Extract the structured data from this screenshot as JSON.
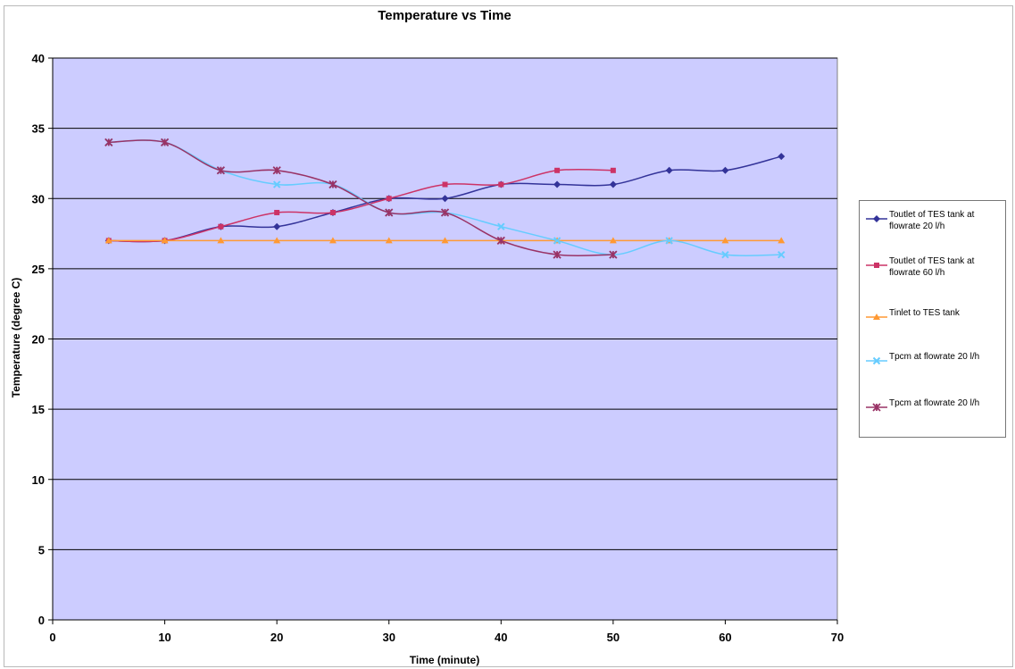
{
  "chart_data": {
    "type": "line",
    "title": "Temperature vs Time",
    "xlabel": "Time (minute)",
    "ylabel": "Temperature (degree C)",
    "xlim": [
      0,
      70
    ],
    "ylim": [
      0,
      40
    ],
    "x_ticks": [
      0,
      10,
      20,
      30,
      40,
      50,
      60,
      70
    ],
    "y_ticks": [
      0,
      5,
      10,
      15,
      20,
      25,
      30,
      35,
      40
    ],
    "grid": true,
    "legend_position": "right",
    "plot_background": "#ccccff",
    "series": [
      {
        "name": "Toutlet of TES tank at flowrate 20 l/h",
        "color": "#333399",
        "marker": "diamond",
        "x": [
          5,
          10,
          15,
          20,
          25,
          30,
          35,
          40,
          45,
          50,
          55,
          60,
          65
        ],
        "values": [
          27,
          27,
          28,
          28,
          29,
          30,
          30,
          31,
          31,
          31,
          32,
          32,
          33
        ]
      },
      {
        "name": "Toutlet of TES tank at flowrate 60 l/h",
        "color": "#cc3366",
        "marker": "square",
        "x": [
          5,
          10,
          15,
          20,
          25,
          30,
          35,
          40,
          45,
          50
        ],
        "values": [
          27,
          27,
          28,
          29,
          29,
          30,
          31,
          31,
          32,
          32
        ]
      },
      {
        "name": "Tinlet to TES tank",
        "color": "#ff9933",
        "marker": "triangle",
        "x": [
          5,
          10,
          15,
          20,
          25,
          30,
          35,
          40,
          45,
          50,
          55,
          60,
          65
        ],
        "values": [
          27,
          27,
          27,
          27,
          27,
          27,
          27,
          27,
          27,
          27,
          27,
          27,
          27
        ]
      },
      {
        "name": "Tpcm at flowrate 20 l/h",
        "color": "#66ccff",
        "marker": "x",
        "x": [
          5,
          10,
          15,
          20,
          25,
          30,
          35,
          40,
          45,
          50,
          55,
          60,
          65
        ],
        "values": [
          34,
          34,
          32,
          31,
          31,
          29,
          29,
          28,
          27,
          26,
          27,
          26,
          26
        ]
      },
      {
        "name": "Tpcm at flowrate 20 l/h",
        "color": "#993366",
        "marker": "star",
        "x": [
          5,
          10,
          15,
          20,
          25,
          30,
          35,
          40,
          45,
          50
        ],
        "values": [
          34,
          34,
          32,
          32,
          31,
          29,
          29,
          27,
          26,
          26
        ]
      }
    ]
  }
}
